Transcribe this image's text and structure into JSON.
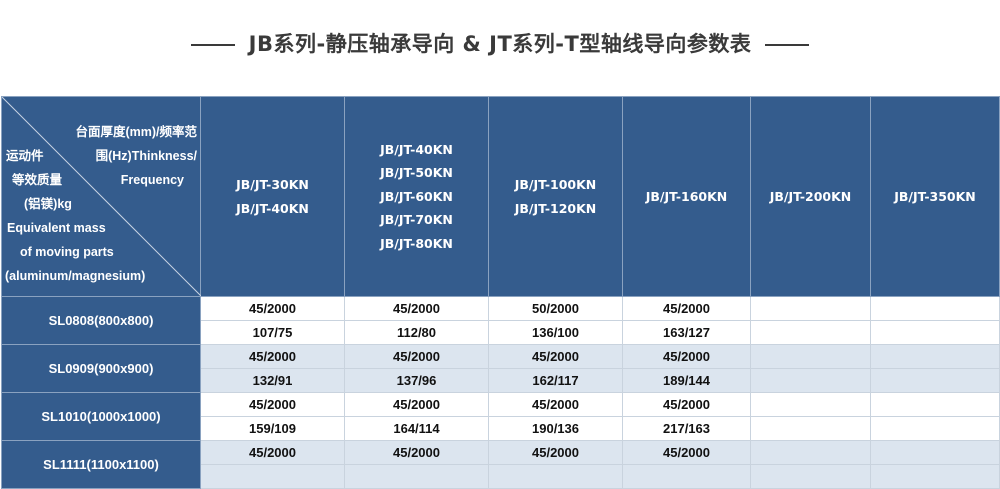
{
  "title": "JB系列-静压轴承导向 & JT系列-T型轴线导向参数表",
  "corner": {
    "top_right": [
      "台面厚度(mm)/频率范",
      "围(Hz)Thinkness/",
      "Frequency"
    ],
    "bottom_left": [
      "运动件",
      "等效质量",
      "(铝镁)kg",
      "Equivalent mass",
      "of moving parts",
      "(aluminum/magnesium)"
    ]
  },
  "columns": [
    [
      "JB/JT-30KN",
      "JB/JT-40KN"
    ],
    [
      "JB/JT-40KN",
      "JB/JT-50KN",
      "JB/JT-60KN",
      "JB/JT-70KN",
      "JB/JT-80KN"
    ],
    [
      "JB/JT-100KN",
      "JB/JT-120KN"
    ],
    [
      "JB/JT-160KN"
    ],
    [
      "JB/JT-200KN"
    ],
    [
      "JB/JT-350KN"
    ]
  ],
  "rows": [
    {
      "label": "SL0808(800x800)",
      "line1": [
        "45/2000",
        "45/2000",
        "50/2000",
        "45/2000",
        "",
        ""
      ],
      "line2": [
        "107/75",
        "112/80",
        "136/100",
        "163/127",
        "",
        ""
      ]
    },
    {
      "label": "SL0909(900x900)",
      "line1": [
        "45/2000",
        "45/2000",
        "45/2000",
        "45/2000",
        "",
        ""
      ],
      "line2": [
        "132/91",
        "137/96",
        "162/117",
        "189/144",
        "",
        ""
      ]
    },
    {
      "label": "SL1010(1000x1000)",
      "line1": [
        "45/2000",
        "45/2000",
        "45/2000",
        "45/2000",
        "",
        ""
      ],
      "line2": [
        "159/109",
        "164/114",
        "190/136",
        "217/163",
        "",
        ""
      ]
    },
    {
      "label": "SL1111(1100x1100)",
      "line1": [
        "45/2000",
        "45/2000",
        "45/2000",
        "45/2000",
        "",
        ""
      ],
      "line2": [
        "",
        "",
        "",
        "",
        "",
        ""
      ]
    }
  ],
  "colors": {
    "header_bg": "#345c8d",
    "alt_row": "#dce5ef"
  }
}
